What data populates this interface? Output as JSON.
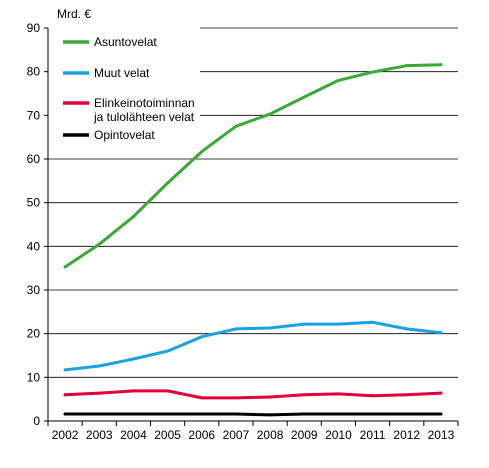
{
  "chart_data": {
    "type": "line",
    "unit_label": "Mrd.  €",
    "x": [
      "2002",
      "2003",
      "2004",
      "2005",
      "2006",
      "2007",
      "2008",
      "2009",
      "2010",
      "2011",
      "2012",
      "2013"
    ],
    "ylim": [
      0,
      90
    ],
    "yticks": [
      0,
      10,
      20,
      30,
      40,
      50,
      60,
      70,
      80,
      90
    ],
    "grid": true,
    "legend_position": "top-left",
    "series": [
      {
        "name": "Asuntovelat",
        "color": "#3aaa35",
        "values": [
          35.3,
          40.5,
          46.8,
          54.5,
          61.7,
          67.5,
          70.3,
          74.2,
          78.0,
          79.9,
          81.4,
          81.6
        ]
      },
      {
        "name": "Muut velat",
        "color": "#1ba1e2",
        "values": [
          11.7,
          12.6,
          14.2,
          16.0,
          19.3,
          21.1,
          21.3,
          22.2,
          22.2,
          22.6,
          21.1,
          20.2
        ]
      },
      {
        "name": "Elinkeinotoiminnan\nja tulolähteen velat",
        "color": "#e2003a",
        "values": [
          6.0,
          6.4,
          6.9,
          6.9,
          5.3,
          5.3,
          5.5,
          6.0,
          6.2,
          5.8,
          6.0,
          6.4
        ]
      },
      {
        "name": "Opintovelat",
        "color": "#000000",
        "values": [
          1.6,
          1.6,
          1.6,
          1.6,
          1.6,
          1.6,
          1.4,
          1.6,
          1.6,
          1.6,
          1.6,
          1.6
        ]
      }
    ]
  }
}
